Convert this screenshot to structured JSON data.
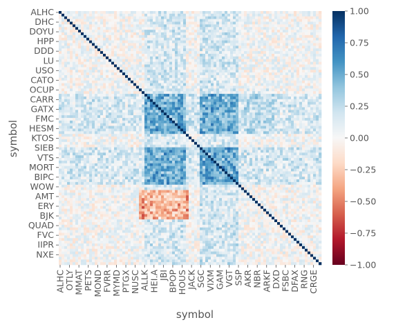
{
  "chart_data": {
    "type": "heatmap",
    "title": "",
    "xlabel": "symbol",
    "ylabel": "symbol",
    "y_tick_labels": [
      "ALHC",
      "DHC",
      "DOYU",
      "HPP",
      "DDD",
      "LU",
      "USO",
      "CATO",
      "OCUP",
      "CARR",
      "GATX",
      "FMC",
      "HESM",
      "KTOS",
      "SIEB",
      "VTS",
      "MORT",
      "BIPC",
      "WOW",
      "AMT",
      "ERY",
      "BJK",
      "QUAD",
      "FVC",
      "IIPR",
      "NXE"
    ],
    "x_tick_labels": [
      "ALHC",
      "OTLY",
      "MMAT",
      "PETS",
      "MOND",
      "FVRR",
      "MYMD",
      "PTGX",
      "NUSC",
      "ALLK",
      "HEI.A",
      "JBI",
      "BPOP",
      "HOUS",
      "JACK",
      "SGC",
      "VIXM",
      "GAM",
      "VGT",
      "SSP",
      "AKR",
      "NBR",
      "ARKF",
      "DXD",
      "FSBC",
      "DFAX",
      "RNG",
      "CRGE"
    ],
    "colorbar": {
      "min": -1.0,
      "max": 1.0,
      "tick_labels": [
        "1.00",
        "0.75",
        "0.50",
        "0.25",
        "0.00",
        "−0.25",
        "−0.50",
        "−0.75",
        "−1.00"
      ],
      "tick_values": [
        1.0,
        0.75,
        0.5,
        0.25,
        0.0,
        -0.25,
        -0.5,
        -0.75,
        -1.0
      ],
      "colormap": "RdBu"
    },
    "diagonal_value": 1.0,
    "grid": false,
    "notes_visible": "dense correlation matrix, mostly near 0 with correlated blocks"
  },
  "colors": {
    "text": "#555555",
    "tick": "#555555",
    "cmap_stops": [
      "#67001f",
      "#b2182b",
      "#d6604d",
      "#f4a582",
      "#fddbc7",
      "#f7f7f7",
      "#d1e5f0",
      "#92c5de",
      "#4393c3",
      "#2166ac",
      "#053061"
    ]
  }
}
